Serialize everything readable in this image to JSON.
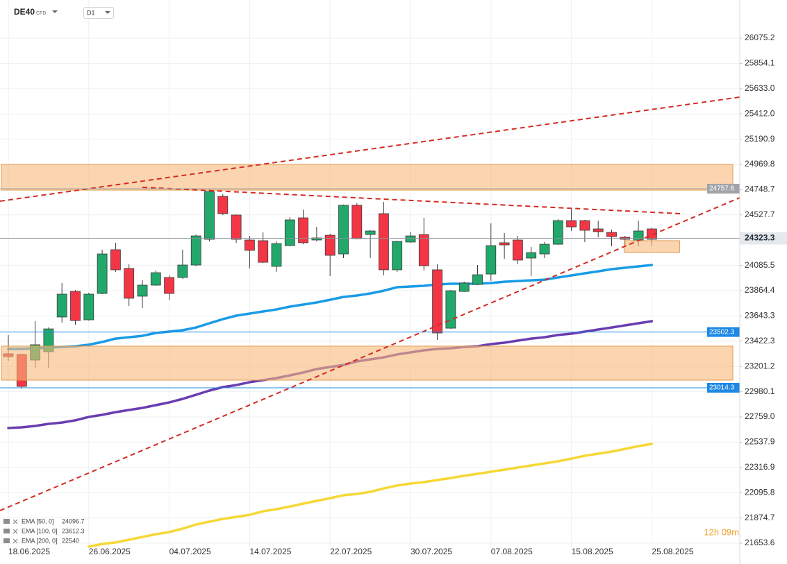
{
  "header": {
    "symbol": "DE40",
    "badge": "CFD",
    "timeframe": "D1",
    "countdown": "12h 09m"
  },
  "chart_data": {
    "type": "candlestick",
    "categories": [
      "18.06.2025",
      null,
      null,
      null,
      null,
      null,
      "26.06.2025",
      null,
      null,
      null,
      null,
      null,
      "04.07.2025",
      null,
      null,
      null,
      null,
      null,
      "14.07.2025",
      null,
      null,
      null,
      null,
      null,
      "22.07.2025",
      null,
      null,
      null,
      null,
      null,
      "30.07.2025",
      null,
      null,
      null,
      null,
      null,
      "07.08.2025",
      null,
      null,
      null,
      null,
      null,
      "15.08.2025",
      null,
      null,
      null,
      null,
      null,
      "25.08.2025"
    ],
    "open": [
      23312,
      23306,
      23257,
      23330,
      23634,
      23858,
      23609,
      23840,
      24223,
      24059,
      23816,
      23913,
      23980,
      23980,
      24089,
      24314,
      24690,
      24527,
      24308,
      24302,
      24077,
      24259,
      24502,
      24308,
      24350,
      24186,
      24612,
      24356,
      24539,
      24047,
      24290,
      24356,
      24047,
      23536,
      23858,
      23919,
      24010,
      24284,
      24308,
      24150,
      24186,
      24271,
      24478,
      24478,
      24405,
      24375,
      24332,
      24302,
      24405
    ],
    "high": [
      23476,
      23312,
      23597,
      23543,
      23931,
      23870,
      23846,
      24223,
      24284,
      24095,
      23956,
      24041,
      23998,
      24223,
      24356,
      24757,
      24709,
      24533,
      24344,
      24375,
      24296,
      24508,
      24575,
      24423,
      24363,
      24618,
      24630,
      24393,
      24642,
      24302,
      24381,
      24502,
      24095,
      23870,
      23944,
      24089,
      24454,
      24369,
      24344,
      24247,
      24290,
      24490,
      24587,
      24484,
      24478,
      24399,
      24344,
      24478,
      24417
    ],
    "low": [
      23251,
      23008,
      23190,
      23190,
      23585,
      23567,
      23603,
      23834,
      24029,
      23731,
      23713,
      23907,
      23785,
      23968,
      24077,
      24296,
      24527,
      24284,
      24059,
      24107,
      24029,
      24253,
      24271,
      24296,
      23992,
      24150,
      24314,
      24150,
      23998,
      24029,
      24284,
      24041,
      23433,
      23530,
      23852,
      23913,
      23950,
      24144,
      24095,
      23992,
      24150,
      24265,
      24387,
      24290,
      24332,
      24253,
      24253,
      24253,
      24253
    ],
    "close": [
      23287,
      23026,
      23391,
      23530,
      23834,
      23603,
      23834,
      24186,
      24047,
      23798,
      23913,
      24022,
      23840,
      24089,
      24344,
      24733,
      24539,
      24314,
      24217,
      24113,
      24277,
      24484,
      24284,
      24326,
      24174,
      24612,
      24320,
      24387,
      24047,
      24296,
      24344,
      24083,
      23494,
      23864,
      23931,
      24004,
      24259,
      24265,
      24132,
      24198,
      24271,
      24478,
      24423,
      24393,
      24381,
      24338,
      24314,
      24387,
      24314
    ],
    "up_color": "#22a86b",
    "down_color": "#f23645",
    "overlays": [
      {
        "type": "line",
        "name": "EMA [50, 0]",
        "legend_value": 24096.7,
        "color": "#1a9be6",
        "values": [
          23354,
          23354,
          23360,
          23366,
          23372,
          23378,
          23391,
          23415,
          23445,
          23457,
          23469,
          23494,
          23506,
          23518,
          23542,
          23579,
          23615,
          23646,
          23664,
          23682,
          23700,
          23725,
          23743,
          23761,
          23785,
          23810,
          23822,
          23840,
          23864,
          23895,
          23901,
          23907,
          23919,
          23925,
          23925,
          23925,
          23931,
          23943,
          23949,
          23955,
          23961,
          23980,
          23998,
          24016,
          24034,
          24053,
          24065,
          24077,
          24089
        ]
      },
      {
        "type": "line",
        "name": "EMA [100, 0]",
        "legend_value": 23612.3,
        "color": "#6a3db0",
        "values": [
          22662,
          22668,
          22680,
          22698,
          22710,
          22729,
          22759,
          22777,
          22801,
          22820,
          22838,
          22862,
          22886,
          22917,
          22953,
          22990,
          23020,
          23038,
          23063,
          23081,
          23099,
          23123,
          23148,
          23178,
          23196,
          23214,
          23245,
          23263,
          23281,
          23306,
          23324,
          23342,
          23354,
          23360,
          23372,
          23378,
          23397,
          23409,
          23427,
          23445,
          23457,
          23476,
          23488,
          23506,
          23524,
          23542,
          23561,
          23579,
          23597
        ]
      },
      {
        "type": "line",
        "name": "EMA [200, 0]",
        "legend_value": 22540.0,
        "color": "#f6d835",
        "values": [
          null,
          null,
          null,
          null,
          null,
          null,
          21623,
          21647,
          21660,
          21684,
          21708,
          21732,
          21751,
          21781,
          21817,
          21842,
          21866,
          21884,
          21902,
          21933,
          21951,
          21975,
          22000,
          22024,
          22048,
          22073,
          22085,
          22103,
          22133,
          22158,
          22176,
          22188,
          22206,
          22224,
          22243,
          22261,
          22279,
          22297,
          22316,
          22334,
          22352,
          22370,
          22394,
          22419,
          22437,
          22455,
          22479,
          22504,
          22522
        ]
      }
    ],
    "levels": [
      {
        "value": 24757.6,
        "color": "#a0a4a8"
      },
      {
        "value": 23502.3,
        "color": "#1e88e5"
      },
      {
        "value": 23014.3,
        "color": "#1e88e5"
      }
    ],
    "zones": [
      {
        "from": 24745,
        "to": 24970,
        "span": "full",
        "color": "#f7b97a"
      },
      {
        "from": 23081,
        "to": 23379,
        "span": "full",
        "color": "#f7b97a"
      },
      {
        "from": 24199,
        "to": 24302,
        "span": "last",
        "color": "#f7b97a"
      }
    ],
    "last_price": 24323.3,
    "ylim": [
      21611,
      26379
    ],
    "yticks": [
      26075.2,
      25854.1,
      {
        "value": 25633,
        "label": "25633.0"
      },
      {
        "value": 25412,
        "label": "25412.0"
      },
      25190.9,
      24969.8,
      24748.7,
      24527.7,
      24085.5,
      23864.4,
      23643.3,
      23422.3,
      23201.2,
      22980.1,
      {
        "value": 22759,
        "label": "22759.0"
      },
      22537.9,
      22316.9,
      22095.8,
      21874.7,
      21653.6
    ],
    "grid": true
  }
}
